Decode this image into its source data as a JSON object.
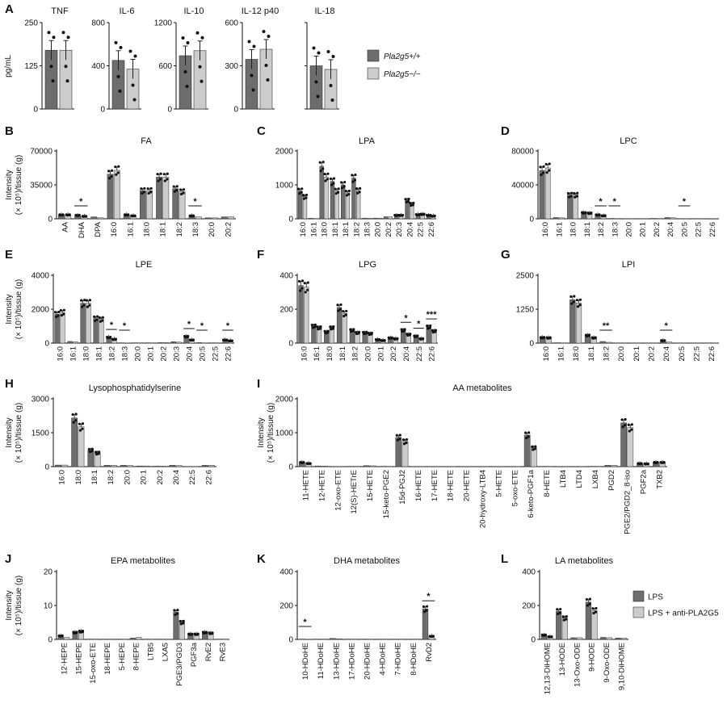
{
  "colors": {
    "dark": "#6d6d6d",
    "light": "#cccccc",
    "axis": "#111111",
    "dot": "#111111"
  },
  "legend_top": {
    "items": [
      "Pla2g5+/+",
      "Pla2g5−/−"
    ]
  },
  "legend_bottom": {
    "items": [
      "LPS",
      "LPS + anti-PLA2G5"
    ]
  },
  "chart_data": [
    {
      "panel": "A",
      "type": "bar",
      "title": "TNF",
      "ylabel": "pg/mL",
      "categories": [
        ""
      ],
      "ylim": [
        0,
        250
      ],
      "yticks": [
        "0",
        "125",
        "250"
      ],
      "series": [
        {
          "name": "Pla2g5+/+",
          "values": [
            170
          ]
        },
        {
          "name": "Pla2g5−/−",
          "values": [
            170
          ]
        }
      ]
    },
    {
      "panel": "A",
      "type": "bar",
      "title": "IL-6",
      "categories": [
        ""
      ],
      "ylim": [
        0,
        800
      ],
      "yticks": [
        "0",
        "400",
        "800"
      ],
      "series": [
        {
          "name": "Pla2g5+/+",
          "values": [
            450
          ]
        },
        {
          "name": "Pla2g5−/−",
          "values": [
            370
          ]
        }
      ]
    },
    {
      "panel": "A",
      "type": "bar",
      "title": "IL-10",
      "categories": [
        ""
      ],
      "ylim": [
        0,
        1200
      ],
      "yticks": [
        "0",
        "600",
        "1200"
      ],
      "series": [
        {
          "name": "Pla2g5+/+",
          "values": [
            740
          ]
        },
        {
          "name": "Pla2g5−/−",
          "values": [
            810
          ]
        }
      ]
    },
    {
      "panel": "A",
      "type": "bar",
      "title": "IL-12 p40",
      "categories": [
        ""
      ],
      "ylim": [
        0,
        600
      ],
      "yticks": [
        "0",
        "300",
        "600"
      ],
      "series": [
        {
          "name": "Pla2g5+/+",
          "values": [
            345
          ]
        },
        {
          "name": "Pla2g5−/−",
          "values": [
            415
          ]
        }
      ]
    },
    {
      "panel": "A",
      "type": "bar",
      "title": "IL-18",
      "categories": [
        ""
      ],
      "ylim": [
        0,
        600
      ],
      "yticks": [],
      "series": [
        {
          "name": "Pla2g5+/+",
          "values": [
            300
          ]
        },
        {
          "name": "Pla2g5−/−",
          "values": [
            275
          ]
        }
      ]
    },
    {
      "panel": "B",
      "type": "bar",
      "title": "FA",
      "ylabel": "Intensity\n(× 10⁵)/tissue (g)",
      "ylim": [
        0,
        70000
      ],
      "yticks": [
        "0",
        "35000",
        "70000"
      ],
      "categories": [
        "AA",
        "DHA",
        "DPA",
        "16:0",
        "16:1",
        "18:0",
        "18:1",
        "18:2",
        "18:3",
        "20:0",
        "20:2"
      ],
      "series": [
        {
          "name": "LPS",
          "values": [
            4000,
            3500,
            2000,
            46000,
            4000,
            29000,
            43000,
            31000,
            3000,
            1000,
            2000
          ]
        },
        {
          "name": "LPS + anti-PLA2G5",
          "values": [
            4000,
            2500,
            1000,
            50000,
            3000,
            29000,
            43000,
            28000,
            2000,
            1000,
            2000
          ]
        }
      ],
      "significant": [
        "DHA",
        "18:3"
      ]
    },
    {
      "panel": "C",
      "type": "bar",
      "title": "LPA",
      "ylim": [
        0,
        2000
      ],
      "yticks": [
        "0",
        "1000",
        "2000"
      ],
      "categories": [
        "16:0",
        "16:1",
        "18:0",
        "18:1",
        "18:1",
        "18:2",
        "18:3",
        "20:0",
        "20:2",
        "20:3",
        "20:4",
        "22:5",
        "22:6"
      ],
      "series": [
        {
          "name": "LPS",
          "values": [
            820,
            15,
            1550,
            1100,
            1000,
            1200,
            20,
            20,
            60,
            100,
            540,
            120,
            100
          ]
        },
        {
          "name": "LPS + anti-PLA2G5",
          "values": [
            650,
            10,
            1230,
            820,
            760,
            830,
            20,
            20,
            60,
            100,
            430,
            130,
            80
          ]
        }
      ],
      "significant": []
    },
    {
      "panel": "D",
      "type": "bar",
      "title": "LPC",
      "ylim": [
        0,
        80000
      ],
      "yticks": [
        "0",
        "40000",
        "80000"
      ],
      "categories": [
        "16:0",
        "16:1",
        "18:0",
        "18:1",
        "18:2",
        "18:3",
        "20:0",
        "20:1",
        "20:2",
        "20:4",
        "20:5",
        "22:5",
        "22:6"
      ],
      "series": [
        {
          "name": "LPS",
          "values": [
            57000,
            1500,
            28000,
            7000,
            4500,
            500,
            300,
            300,
            500,
            1500,
            300,
            300,
            200
          ]
        },
        {
          "name": "LPS + anti-PLA2G5",
          "values": [
            60000,
            1200,
            28000,
            6500,
            3500,
            300,
            300,
            300,
            400,
            1200,
            200,
            300,
            200
          ]
        }
      ],
      "significant": [
        "18:2",
        "18:3",
        "20:5"
      ]
    },
    {
      "panel": "E",
      "type": "bar",
      "title": "LPE",
      "ylim": [
        0,
        4000
      ],
      "yticks": [
        "0",
        "2000",
        "4000"
      ],
      "categories": [
        "16:0",
        "16:1",
        "18:0",
        "18:1",
        "18:2",
        "18:3",
        "20:0",
        "20:1",
        "20:2",
        "20:3",
        "20:4",
        "20:5",
        "22:5",
        "22:6"
      ],
      "series": [
        {
          "name": "LPS",
          "values": [
            1700,
            100,
            2350,
            1450,
            330,
            20,
            20,
            20,
            30,
            80,
            380,
            30,
            20,
            180
          ]
        },
        {
          "name": "LPS + anti-PLA2G5",
          "values": [
            1800,
            80,
            2350,
            1400,
            220,
            10,
            20,
            20,
            30,
            60,
            180,
            15,
            20,
            130
          ]
        }
      ],
      "significant": [
        "18:2",
        "18:3",
        "20:4",
        "20:5",
        "22:6"
      ]
    },
    {
      "panel": "F",
      "type": "bar",
      "title": "LPG",
      "ylim": [
        0,
        400
      ],
      "yticks": [
        "0",
        "200",
        "400"
      ],
      "categories": [
        "16:0",
        "16:1",
        "18:0",
        "18:1",
        "18:2",
        "20:0",
        "20:1",
        "20:2",
        "20:4",
        "22:5",
        "22:6"
      ],
      "series": [
        {
          "name": "LPS",
          "values": [
            340,
            100,
            65,
            210,
            75,
            60,
            20,
            30,
            75,
            40,
            95
          ]
        },
        {
          "name": "LPS + anti-PLA2G5",
          "values": [
            330,
            90,
            90,
            175,
            60,
            55,
            15,
            25,
            50,
            25,
            70
          ]
        }
      ],
      "significant": [
        "20:4",
        "22:5",
        "22:6"
      ],
      "significance_labels": [
        "*",
        "*",
        "***"
      ]
    },
    {
      "panel": "G",
      "type": "bar",
      "title": "LPI",
      "ylim": [
        0,
        2500
      ],
      "yticks": [
        "0",
        "1250",
        "2500"
      ],
      "categories": [
        "16:0",
        "16:1",
        "18:0",
        "18:1",
        "18:2",
        "20:0",
        "20:1",
        "20:2",
        "20:4",
        "20:5",
        "22:5",
        "22:6"
      ],
      "series": [
        {
          "name": "LPS",
          "values": [
            200,
            15,
            1600,
            280,
            60,
            10,
            10,
            10,
            90,
            10,
            10,
            10
          ]
        },
        {
          "name": "LPS + anti-PLA2G5",
          "values": [
            190,
            10,
            1480,
            190,
            30,
            10,
            10,
            10,
            40,
            10,
            10,
            10
          ]
        }
      ],
      "significant": [
        "18:2",
        "20:4"
      ],
      "significance_labels": [
        "**",
        "*"
      ]
    },
    {
      "panel": "H",
      "type": "bar",
      "title": "Lysophosphatidylserine",
      "ylim": [
        0,
        3000
      ],
      "yticks": [
        "0",
        "1500",
        "3000"
      ],
      "categories": [
        "16:0",
        "18:0",
        "18:1",
        "18:2",
        "20:0",
        "20:1",
        "20:2",
        "20:4",
        "22:5",
        "22:6"
      ],
      "series": [
        {
          "name": "LPS",
          "values": [
            70,
            2150,
            720,
            60,
            60,
            30,
            20,
            60,
            10,
            60
          ]
        },
        {
          "name": "LPS + anti-PLA2G5",
          "values": [
            70,
            1760,
            600,
            60,
            50,
            30,
            20,
            50,
            10,
            60
          ]
        }
      ],
      "significant": []
    },
    {
      "panel": "I",
      "type": "bar",
      "title": "AA metabolites",
      "ylim": [
        0,
        2000
      ],
      "yticks": [
        "0",
        "1000",
        "2000"
      ],
      "categories": [
        "11-HETE",
        "12-HETE",
        "12-oxo-ETE",
        "12(S)-HETrE",
        "15-HETE",
        "15-keto-PGE2",
        "15d-PGJ2",
        "16-HETE",
        "17-HETE",
        "18-HETE",
        "20-HETE",
        "20-hydroxy-LTB4",
        "5-HETE",
        "5-oxo-ETE",
        "6-keto-PGF1a",
        "8-HETE",
        "LTB4",
        "LTD4",
        "LXB4",
        "PGD2",
        "PGE2/PGD2_8-iso",
        "PGF2a",
        "TXB2"
      ],
      "series": [
        {
          "name": "LPS",
          "values": [
            120,
            20,
            5,
            10,
            30,
            10,
            860,
            5,
            5,
            5,
            5,
            5,
            5,
            5,
            930,
            10,
            5,
            5,
            10,
            40,
            1290,
            90,
            120
          ]
        },
        {
          "name": "LPS + anti-PLA2G5",
          "values": [
            90,
            15,
            5,
            10,
            25,
            10,
            740,
            5,
            5,
            5,
            5,
            5,
            5,
            5,
            550,
            10,
            5,
            5,
            10,
            40,
            1150,
            80,
            120
          ]
        }
      ],
      "significant": []
    },
    {
      "panel": "J",
      "type": "bar",
      "title": "EPA metabolites",
      "ylim": [
        0,
        20
      ],
      "yticks": [
        "0",
        "10",
        "20"
      ],
      "categories": [
        "12-HEPE",
        "15-HEPE",
        "15-oxo-ETE",
        "18-HEPE",
        "5-HEPE",
        "8-HEPE",
        "LTB5",
        "LXA5",
        "PGE3/PGD3",
        "PGF3a",
        "RvE2",
        "RvE3"
      ],
      "series": [
        {
          "name": "LPS",
          "values": [
            1,
            2,
            0.1,
            0.1,
            0.1,
            0.4,
            0.1,
            0.1,
            8,
            1.5,
            2,
            0.1
          ]
        },
        {
          "name": "LPS + anti-PLA2G5",
          "values": [
            0.6,
            2.3,
            0.1,
            0.1,
            0.1,
            0.6,
            0.1,
            0.1,
            5,
            1.5,
            1.8,
            0.1
          ]
        }
      ],
      "significant": []
    },
    {
      "panel": "K",
      "type": "bar",
      "title": "DHA metabolites",
      "ylim": [
        0,
        400
      ],
      "yticks": [
        "0",
        "200",
        "400"
      ],
      "categories": [
        "10-HDoHE",
        "11-HDoHE",
        "13-HDoHE",
        "17-HDoHE",
        "20-HDoHE",
        "4-HDoHE",
        "7-HDoHE",
        "8-HDoHE",
        "RvD2"
      ],
      "series": [
        {
          "name": "LPS",
          "values": [
            2,
            2,
            6,
            2,
            2,
            2,
            2,
            2,
            180
          ]
        },
        {
          "name": "LPS + anti-PLA2G5",
          "values": [
            1,
            2,
            4,
            2,
            2,
            2,
            2,
            2,
            18
          ]
        }
      ],
      "significant": [
        "10-HDoHE",
        "RvD2"
      ]
    },
    {
      "panel": "L",
      "type": "bar",
      "title": "LA metabolites",
      "ylim": [
        0,
        400
      ],
      "yticks": [
        "0",
        "200",
        "400"
      ],
      "categories": [
        "12,13-DiHOME",
        "13-HODE",
        "13-Oxo-ODE",
        "9-HODE",
        "9-Oxo-ODE",
        "9,10-DiHOME"
      ],
      "series": [
        {
          "name": "LPS",
          "values": [
            25,
            165,
            10,
            220,
            12,
            8
          ]
        },
        {
          "name": "LPS + anti-PLA2G5",
          "values": [
            15,
            125,
            10,
            170,
            10,
            8
          ]
        }
      ],
      "significant": []
    }
  ]
}
